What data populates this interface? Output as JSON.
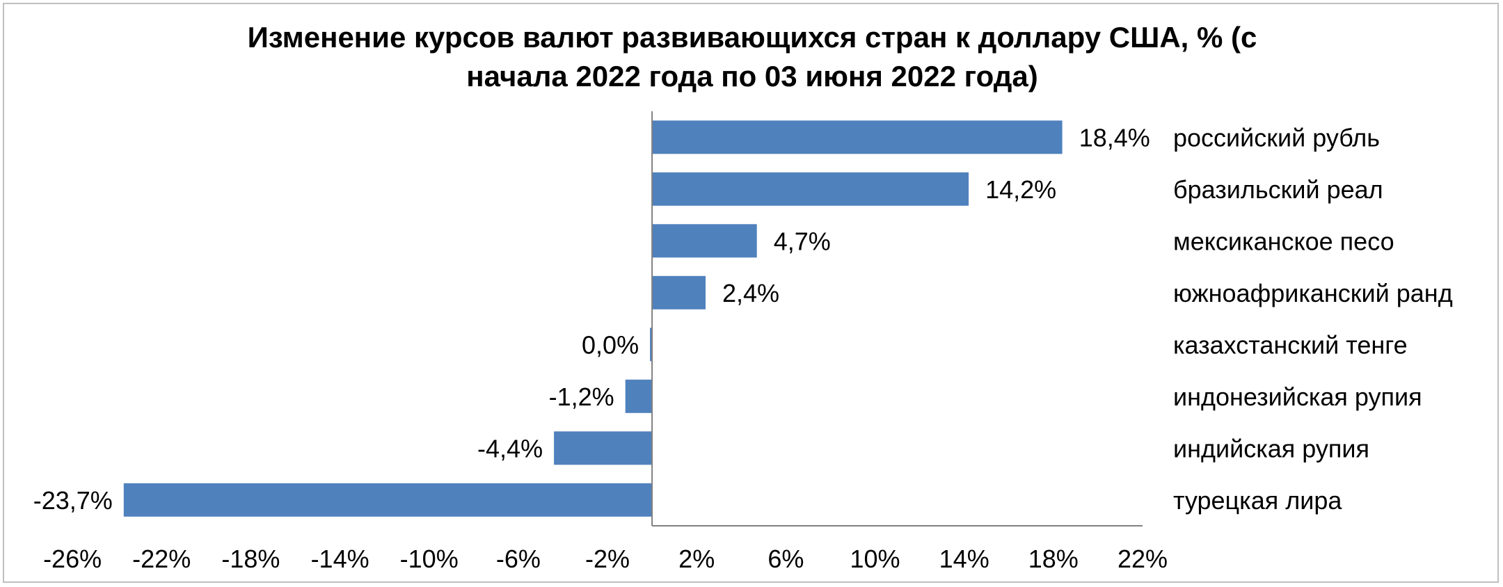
{
  "chart_data": {
    "type": "bar",
    "orientation": "horizontal",
    "title_lines": [
      "Изменение курсов валют развивающихся стран к доллару США, % (с",
      "начала 2022 года по 03 июня 2022 года)"
    ],
    "categories": [
      "российский рубль",
      "бразильский реал",
      "мексиканское песо",
      "южноафриканский ранд",
      "казахстанский тенге",
      "индонезийская рупия",
      "индийская рупия",
      "турецкая лира"
    ],
    "values": [
      18.4,
      14.2,
      4.7,
      2.4,
      0.0,
      -1.2,
      -4.4,
      -23.7
    ],
    "value_labels": [
      "18,4%",
      "14,2%",
      "4,7%",
      "2,4%",
      "0,0%",
      "-1,2%",
      "-4,4%",
      "-23,7%"
    ],
    "xlim": [
      -28,
      22
    ],
    "x_ticks": [
      -26,
      -22,
      -18,
      -14,
      -10,
      -6,
      -2,
      2,
      6,
      10,
      14,
      18,
      22
    ],
    "x_tick_labels": [
      "-26%",
      "-22%",
      "-18%",
      "-14%",
      "-10%",
      "-6%",
      "-2%",
      "2%",
      "6%",
      "10%",
      "14%",
      "18%",
      "22%"
    ],
    "bar_color": "#4f81bd",
    "grid": false,
    "legend": "none",
    "category_labels_position": "right"
  }
}
